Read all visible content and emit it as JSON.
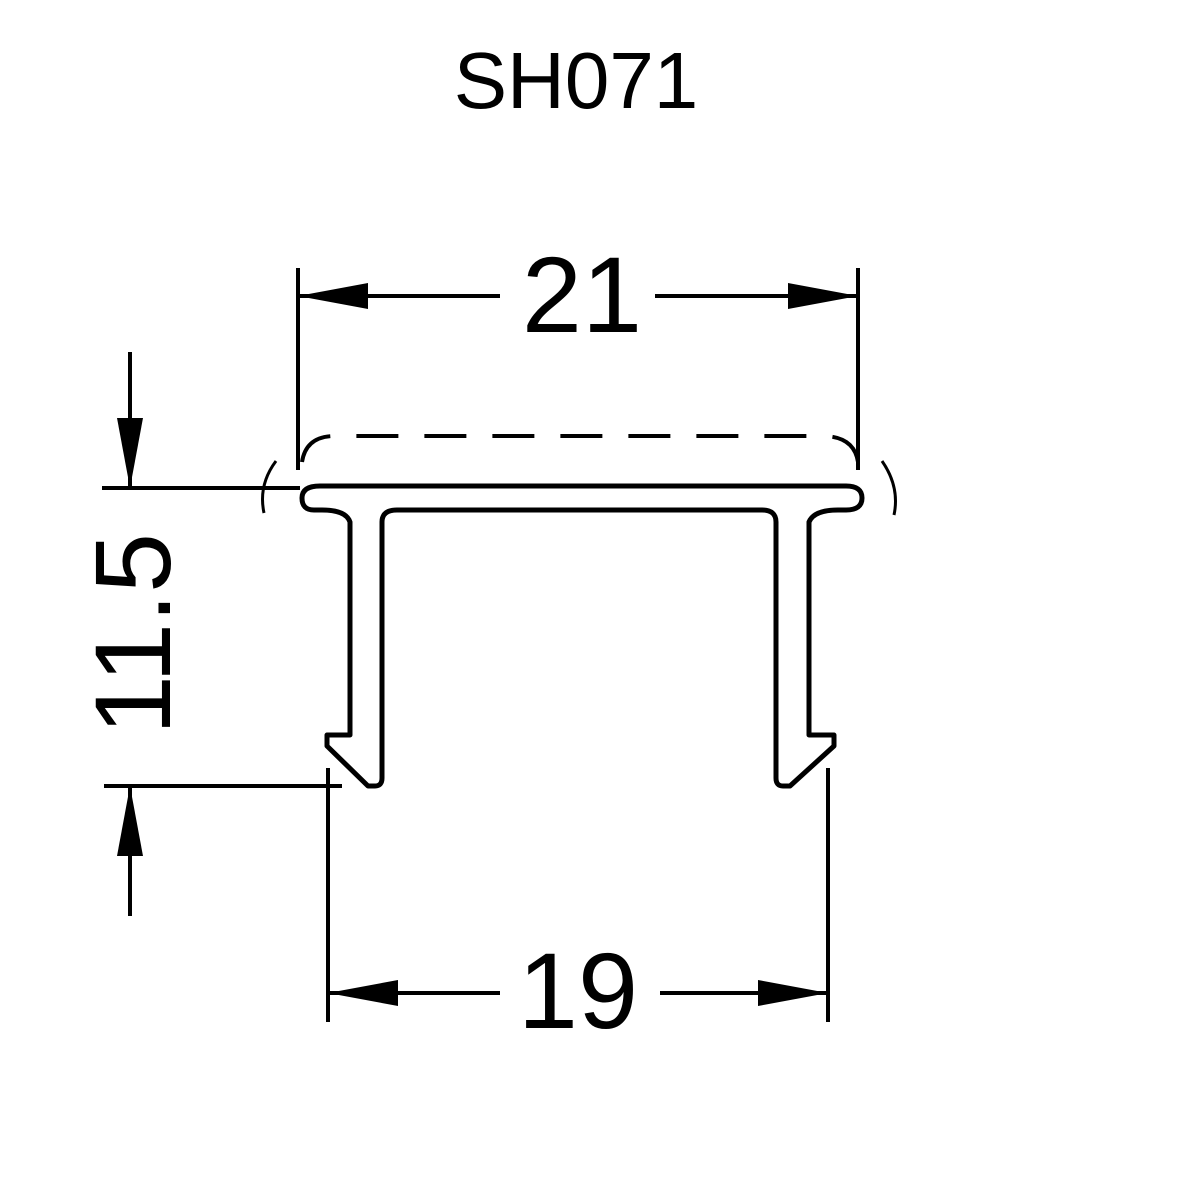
{
  "title": "SH071",
  "dimensions": {
    "top_width": "21",
    "bottom_width": "19",
    "height": "11.5"
  },
  "colors": {
    "ink": "#000000",
    "background": "#ffffff"
  }
}
